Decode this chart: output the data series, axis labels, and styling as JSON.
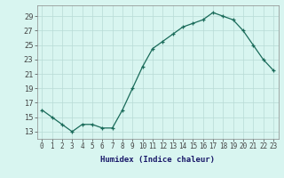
{
  "x": [
    0,
    1,
    2,
    3,
    4,
    5,
    6,
    7,
    8,
    9,
    10,
    11,
    12,
    13,
    14,
    15,
    16,
    17,
    18,
    19,
    20,
    21,
    22,
    23
  ],
  "y": [
    16,
    15,
    14,
    13,
    14,
    14,
    13.5,
    13.5,
    16,
    19,
    22,
    24.5,
    25.5,
    26.5,
    27.5,
    28,
    28.5,
    29.5,
    29,
    28.5,
    27,
    25,
    23,
    21.5
  ],
  "line_color": "#1a6b5a",
  "marker": "+",
  "marker_size": 3.5,
  "bg_color": "#d8f5f0",
  "grid_color": "#b8dbd5",
  "xlabel": "Humidex (Indice chaleur)",
  "xlim": [
    -0.5,
    23.5
  ],
  "ylim": [
    12,
    30.5
  ],
  "yticks": [
    13,
    15,
    17,
    19,
    21,
    23,
    25,
    27,
    29
  ],
  "xticks": [
    0,
    1,
    2,
    3,
    4,
    5,
    6,
    7,
    8,
    9,
    10,
    11,
    12,
    13,
    14,
    15,
    16,
    17,
    18,
    19,
    20,
    21,
    22,
    23
  ],
  "xlabel_color": "#1a1a6a",
  "xlabel_fontsize": 6.5,
  "xlabel_fontweight": "bold",
  "tick_fontsize": 5.5,
  "ytick_fontsize": 6.0
}
